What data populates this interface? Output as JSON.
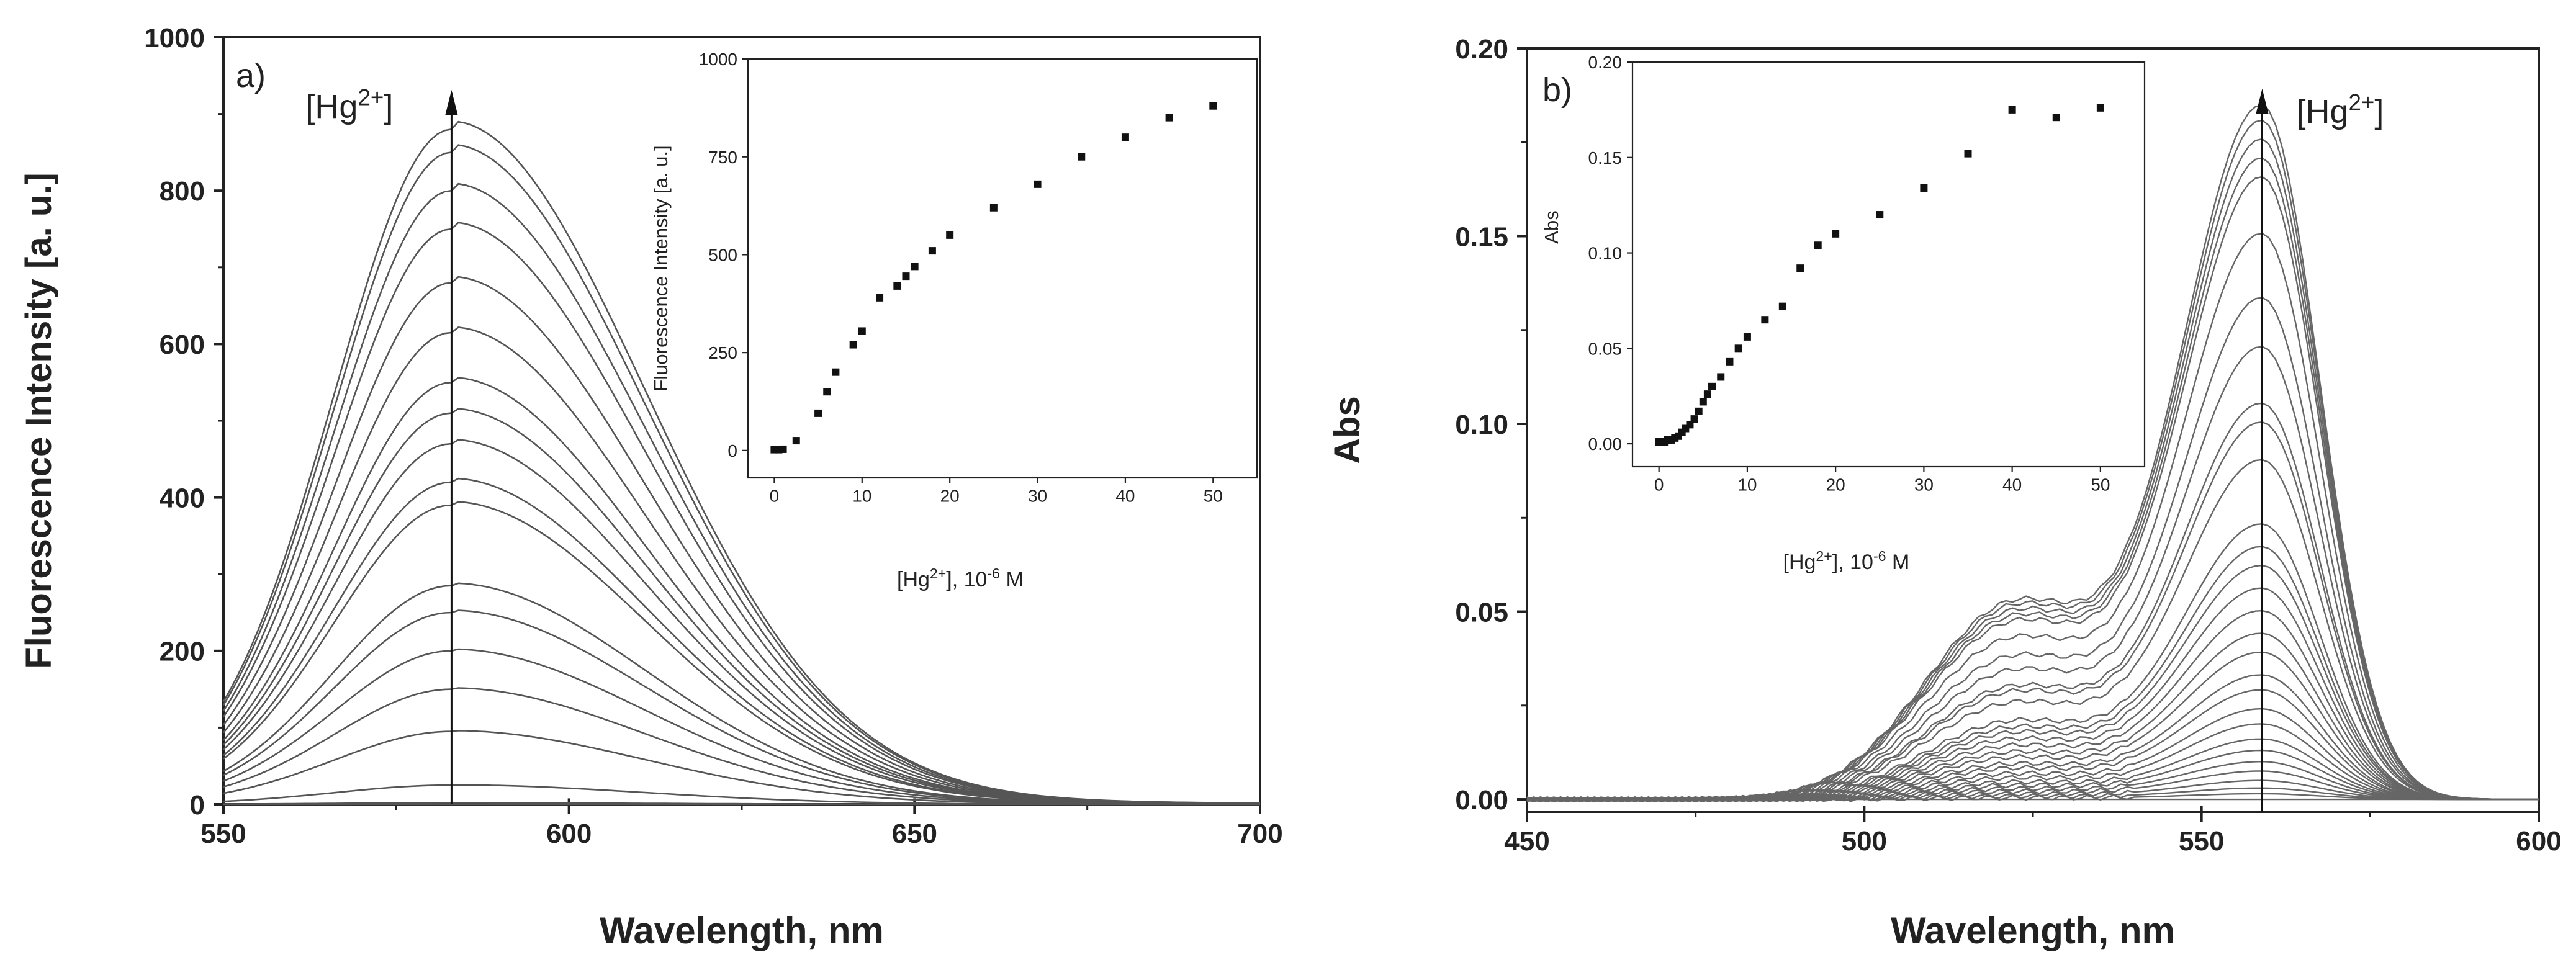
{
  "chart_data": [
    {
      "type": "line",
      "panel_label": "a)",
      "xlabel": "Wavelength, nm",
      "ylabel": "Fluorescence Intensity [a. u.]",
      "xlim": [
        550,
        700
      ],
      "ylim": [
        0,
        1000
      ],
      "xticks": [
        550,
        600,
        650,
        700
      ],
      "yticks": [
        0,
        200,
        400,
        600,
        800,
        1000
      ],
      "arrow_annotation": {
        "text": "[Hg",
        "sup": "2+",
        "close": "]",
        "x": 583
      },
      "peak_wavelength": 583,
      "series_peaks": [
        2,
        25,
        95,
        150,
        200,
        250,
        285,
        390,
        420,
        470,
        510,
        550,
        615,
        680,
        750,
        800,
        850,
        880
      ],
      "inset": {
        "type": "scatter",
        "xlabel_main": "[Hg",
        "xlabel_sup": "2+",
        "xlabel_mid": "], 10",
        "xlabel_exp": "-6",
        "xlabel_end": " M",
        "ylabel": "Fluorescence Intensity [a. u.]",
        "xlim": [
          -3,
          55
        ],
        "ylim": [
          -70,
          1000
        ],
        "xticks": [
          0,
          10,
          20,
          30,
          40,
          50
        ],
        "yticks": [
          0,
          250,
          500,
          750,
          1000
        ],
        "x": [
          0,
          0.5,
          1,
          2.5,
          5,
          6,
          7,
          9,
          10,
          12,
          14,
          15,
          16,
          18,
          20,
          25,
          30,
          35,
          40,
          45,
          50
        ],
        "y": [
          2,
          2,
          3,
          25,
          95,
          150,
          200,
          270,
          305,
          390,
          420,
          445,
          470,
          510,
          550,
          620,
          680,
          750,
          800,
          850,
          880
        ]
      }
    },
    {
      "type": "line",
      "panel_label": "b)",
      "xlabel": "Wavelength, nm",
      "ylabel": "Abs",
      "xlim": [
        450,
        600
      ],
      "ylim": [
        -0.0033,
        0.2
      ],
      "xticks": [
        450,
        500,
        550,
        600
      ],
      "yticks": [
        "0.00",
        "0.05",
        "0.10",
        "0.15",
        "0.20"
      ],
      "arrow_annotation": {
        "text": "[Hg",
        "sup": "2+",
        "close": "]",
        "x": 559
      },
      "peak_wavelength": 559,
      "series_peaks": [
        0.0015,
        0.003,
        0.005,
        0.0075,
        0.01,
        0.013,
        0.016,
        0.02,
        0.024,
        0.029,
        0.033,
        0.039,
        0.044,
        0.05,
        0.056,
        0.062,
        0.067,
        0.073,
        0.09,
        0.1,
        0.105,
        0.12,
        0.133,
        0.15,
        0.165,
        0.17,
        0.175,
        0.18,
        0.184
      ],
      "inset": {
        "type": "scatter",
        "xlabel_main": "[Hg",
        "xlabel_sup": "2+",
        "xlabel_mid": "], 10",
        "xlabel_exp": "-6",
        "xlabel_end": " M",
        "ylabel": "Abs",
        "xlim": [
          -3,
          55
        ],
        "ylim": [
          -0.012,
          0.2
        ],
        "xticks": [
          0,
          10,
          20,
          30,
          40,
          50
        ],
        "yticks": [
          "0.00",
          "0.05",
          "0.10",
          "0.15",
          "0.20"
        ],
        "x": [
          0,
          0.3,
          0.6,
          1,
          1.4,
          1.8,
          2.2,
          2.6,
          3,
          3.5,
          4,
          4.5,
          5,
          5.5,
          6,
          7,
          8,
          9,
          10,
          12,
          14,
          16,
          18,
          20,
          25,
          30,
          35,
          40,
          45,
          50
        ],
        "y": [
          0.001,
          0.001,
          0.001,
          0.002,
          0.002,
          0.003,
          0.004,
          0.006,
          0.008,
          0.01,
          0.013,
          0.017,
          0.022,
          0.026,
          0.03,
          0.035,
          0.043,
          0.05,
          0.056,
          0.065,
          0.072,
          0.092,
          0.104,
          0.11,
          0.12,
          0.134,
          0.152,
          0.175,
          0.171,
          0.176
        ]
      }
    }
  ]
}
